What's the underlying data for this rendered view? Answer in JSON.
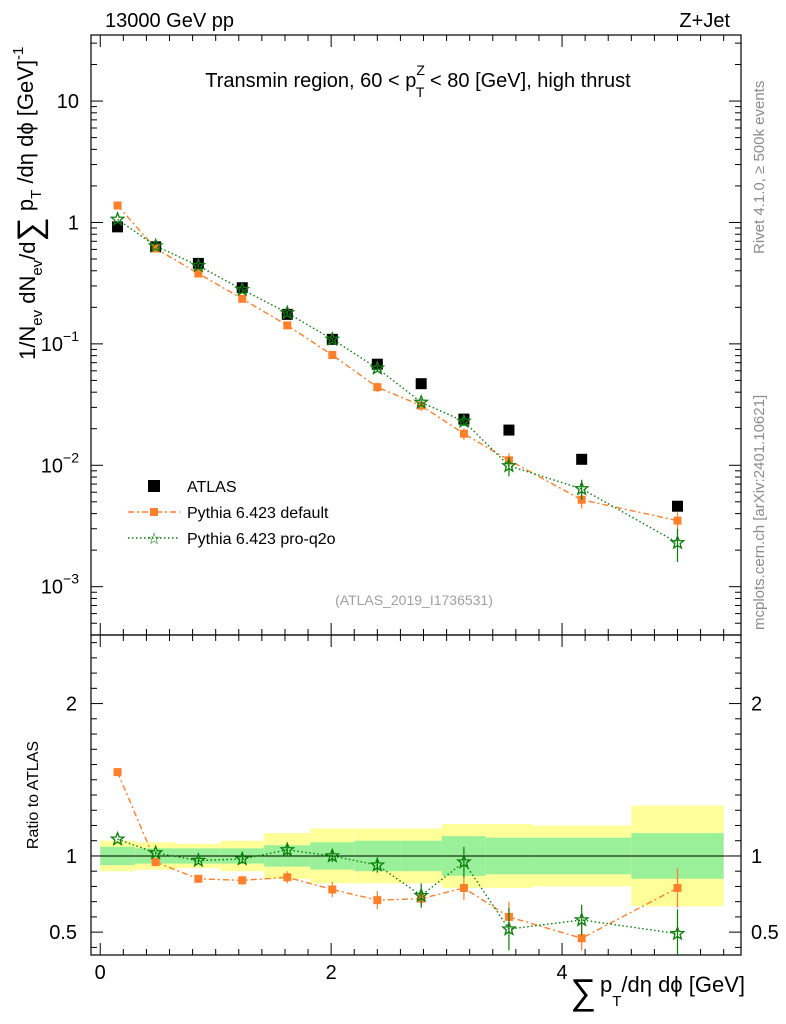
{
  "header": {
    "left": "13000 GeV pp",
    "right": "Z+Jet",
    "side_top": "Rivet 4.1.0, ≥ 500k events",
    "side_bottom": "mcplots.cern.ch [arXiv:2401.10621]"
  },
  "chart_data": {
    "type": "line",
    "title": "Transmin region, 60 < p_T^Z < 80 [GeV], high thrust",
    "title_parts": {
      "a": "Transmin region, 60 < p",
      "sub": "T",
      "sup": "Z",
      "b": " < 80 [GeV], high thrust"
    },
    "analysis_tag": "(ATLAS_2019_I1736531)",
    "xlabel": {
      "sigma": "∑",
      "p": "p",
      "sub": "T",
      "rest": "/dη dϕ [GeV]"
    },
    "ylabel": {
      "text": "1/N_ev dN_ev/d∑ p_T /dη dϕ [GeV]^-1",
      "part1": "1/N",
      "sub1": "ev",
      "part2": " dN",
      "sub2": "ev",
      "part3": "/d",
      "sigma": "∑",
      "part4": " p",
      "sub3": "T",
      "part5": " /dη dϕ  [GeV]",
      "sup": "-1"
    },
    "ratio_ylabel": "Ratio to ATLAS",
    "xlim": [
      -0.08,
      5.55
    ],
    "ylim": [
      0.0004,
      35
    ],
    "ratio_ylim": [
      0.35,
      2.45
    ],
    "yscale": "log",
    "x_ticks": [
      0,
      2,
      4
    ],
    "x_tick_labels": [
      "0",
      "2",
      "4"
    ],
    "y_ticks": [
      0.001,
      0.01,
      0.1,
      1,
      10
    ],
    "y_tick_labels": [
      {
        "base": "10",
        "exp": "−3"
      },
      {
        "base": "10",
        "exp": "−2"
      },
      {
        "base": "10",
        "exp": "−1"
      },
      {
        "base": "1",
        "exp": ""
      },
      {
        "base": "10",
        "exp": ""
      }
    ],
    "ratio_ticks": [
      0.5,
      1,
      2
    ],
    "ratio_tick_labels": [
      "0.5",
      "1",
      "2"
    ],
    "bin_edges": [
      0,
      0.3,
      0.66,
      1.04,
      1.42,
      1.82,
      2.2,
      2.6,
      2.96,
      3.34,
      3.74,
      4.6,
      5.4
    ],
    "x": [
      0.15,
      0.48,
      0.85,
      1.23,
      1.62,
      2.01,
      2.4,
      2.78,
      3.15,
      3.54,
      4.17,
      5.0
    ],
    "series": [
      {
        "name": "ATLAS",
        "values": [
          0.92,
          0.63,
          0.46,
          0.29,
          0.175,
          0.109,
          0.068,
          0.047,
          0.024,
          0.0195,
          0.0112,
          0.0046
        ],
        "ratio": [
          1,
          1,
          1,
          1,
          1,
          1,
          1,
          1,
          1,
          1,
          1,
          1
        ],
        "ratio_err_inner": [
          0.06,
          0.05,
          0.05,
          0.05,
          0.07,
          0.09,
          0.1,
          0.1,
          0.13,
          0.12,
          0.12,
          0.15
        ],
        "ratio_err_outer": [
          0.1,
          0.09,
          0.08,
          0.1,
          0.15,
          0.18,
          0.18,
          0.18,
          0.21,
          0.21,
          0.2,
          0.33
        ],
        "color": "#000000"
      },
      {
        "name": "Pythia 6.423 default",
        "values": [
          1.38,
          0.61,
          0.38,
          0.235,
          0.142,
          0.081,
          0.044,
          0.031,
          0.0182,
          0.011,
          0.0052,
          0.0035
        ],
        "err": [
          0,
          0,
          0.02,
          0.012,
          0.008,
          0.005,
          0.004,
          0.003,
          0.002,
          0.0016,
          0.0008,
          0.0006
        ],
        "ratio": [
          1.55,
          0.96,
          0.85,
          0.84,
          0.86,
          0.78,
          0.71,
          0.72,
          0.79,
          0.6,
          0.46,
          0.79
        ],
        "ratio_err": [
          0,
          0.01,
          0.02,
          0.03,
          0.04,
          0.05,
          0.06,
          0.05,
          0.08,
          0.1,
          0.08,
          0.13
        ],
        "color": "#ff7f2a"
      },
      {
        "name": "Pythia 6.423 pro-q2o",
        "values": [
          1.06,
          0.64,
          0.44,
          0.28,
          0.18,
          0.109,
          0.063,
          0.033,
          0.023,
          0.0099,
          0.0064,
          0.0023
        ],
        "err": [
          0,
          0,
          0.015,
          0.01,
          0.007,
          0.004,
          0.003,
          0.002,
          0.002,
          0.0018,
          0.0012,
          0.0007
        ],
        "ratio": [
          1.11,
          1.02,
          0.97,
          0.98,
          1.04,
          1.0,
          0.94,
          0.74,
          0.96,
          0.52,
          0.58,
          0.49
        ],
        "ratio_err": [
          0,
          0.01,
          0.02,
          0.03,
          0.04,
          0.04,
          0.05,
          0.08,
          0.1,
          0.14,
          0.1,
          0.16
        ],
        "color": "#0a7d0a"
      }
    ]
  },
  "legend": {
    "atlas": "ATLAS",
    "default": "Pythia 6.423 default",
    "proq2o": "Pythia 6.423 pro-q2o"
  }
}
